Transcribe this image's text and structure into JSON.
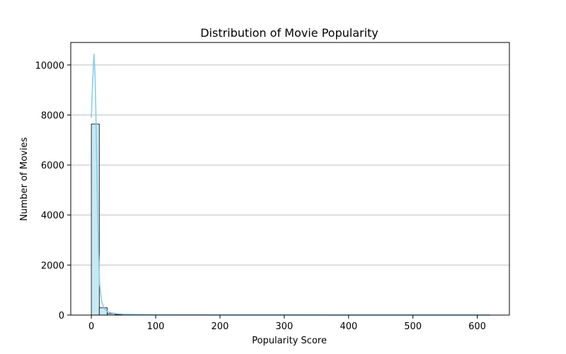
{
  "chart_data": {
    "type": "bar",
    "title": "Distribution of Movie Popularity",
    "xlabel": "Popularity Score",
    "ylabel": "Number of Movies",
    "xlim": [
      -32,
      650
    ],
    "ylim": [
      0,
      10900
    ],
    "xticks": [
      0,
      100,
      200,
      300,
      400,
      500,
      600
    ],
    "yticks": [
      0,
      2000,
      4000,
      6000,
      8000,
      10000
    ],
    "grid": "horizontal",
    "bins": {
      "start": 0,
      "width": 12.35,
      "counts": [
        7640,
        290,
        60,
        25,
        12,
        8,
        5,
        4,
        3,
        2,
        2,
        1,
        1,
        1,
        1,
        1,
        0,
        1,
        0,
        1,
        0,
        0,
        1,
        0,
        0,
        0,
        1,
        0,
        0,
        0,
        0,
        1,
        0,
        0,
        0,
        0,
        0,
        0,
        0,
        0,
        1,
        0,
        0,
        0,
        0,
        0,
        0,
        0,
        0,
        1
      ]
    },
    "kde": {
      "x": [
        0,
        2,
        4,
        5.5,
        7,
        9,
        11,
        13,
        16,
        20,
        25,
        30,
        40,
        50,
        70,
        100,
        150,
        200,
        300,
        400,
        500,
        620
      ],
      "y": [
        7900,
        9300,
        10450,
        9800,
        8200,
        5200,
        2600,
        1200,
        550,
        260,
        140,
        90,
        55,
        35,
        22,
        14,
        9,
        6,
        4,
        3,
        2,
        1
      ]
    },
    "colors": {
      "bar_fill": "#c7e9f4",
      "bar_edge": "#000000",
      "kde_line": "#87ceeb",
      "grid": "#c0c0c0"
    }
  }
}
